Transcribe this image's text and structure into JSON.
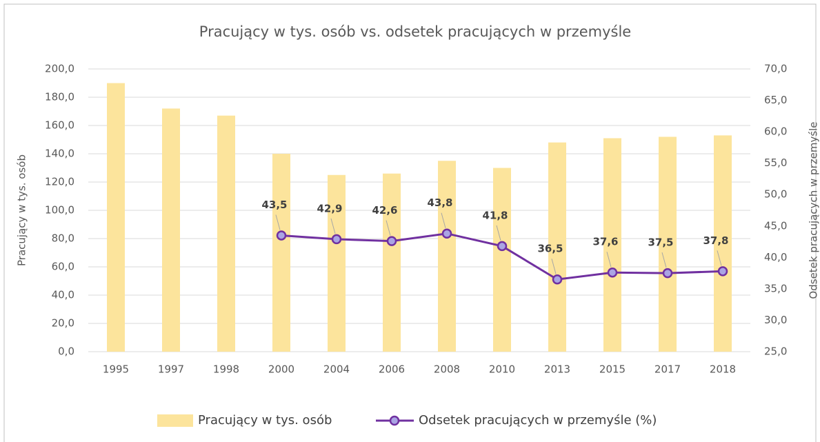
{
  "chart_data": {
    "type": "bar",
    "title": "Pracujący w tys. osób vs. odsetek pracujących w przemyśle",
    "ylabel": "Pracujący w tys. osób",
    "y2label": "Odsetek pracujących w przemyśle",
    "categories": [
      "1995",
      "1997",
      "1998",
      "2000",
      "2004",
      "2006",
      "2008",
      "2010",
      "2013",
      "2015",
      "2017",
      "2018"
    ],
    "series": [
      {
        "name": "Pracujący w tys. osób",
        "type": "bar",
        "color": "#fce49c",
        "values": [
          190,
          172,
          167,
          140,
          125,
          126,
          135,
          130,
          148,
          151,
          152,
          153
        ]
      },
      {
        "name": "Odsetek pracujących w przemyśle (%)",
        "type": "line",
        "axis": "y2",
        "color": "#7030a0",
        "marker_color": "#aaa4e4",
        "values": [
          null,
          null,
          null,
          43.5,
          42.9,
          42.6,
          43.8,
          41.8,
          36.5,
          37.6,
          37.5,
          37.8
        ],
        "value_labels": [
          null,
          null,
          null,
          "43,5",
          "42,9",
          "42,6",
          "43,8",
          "41,8",
          "36,5",
          "37,6",
          "37,5",
          "37,8"
        ]
      }
    ],
    "ylim": [
      0,
      200
    ],
    "yticks": [
      {
        "value": 0,
        "label": "0,0"
      },
      {
        "value": 20,
        "label": "20,0"
      },
      {
        "value": 40,
        "label": "40,0"
      },
      {
        "value": 60,
        "label": "60,0"
      },
      {
        "value": 80,
        "label": "80,0"
      },
      {
        "value": 100,
        "label": "100,0"
      },
      {
        "value": 120,
        "label": "120,0"
      },
      {
        "value": 140,
        "label": "140,0"
      },
      {
        "value": 160,
        "label": "160,0"
      },
      {
        "value": 180,
        "label": "180,0"
      },
      {
        "value": 200,
        "label": "200,0"
      }
    ],
    "y2lim": [
      25,
      70
    ],
    "y2ticks": [
      {
        "value": 25,
        "label": "25,0"
      },
      {
        "value": 30,
        "label": "30,0"
      },
      {
        "value": 35,
        "label": "35,0"
      },
      {
        "value": 40,
        "label": "40,0"
      },
      {
        "value": 45,
        "label": "45,0"
      },
      {
        "value": 50,
        "label": "50,0"
      },
      {
        "value": 55,
        "label": "55,0"
      },
      {
        "value": 60,
        "label": "60,0"
      },
      {
        "value": 65,
        "label": "65,0"
      },
      {
        "value": 70,
        "label": "70,0"
      }
    ],
    "grid": true,
    "legend": "bottom"
  }
}
